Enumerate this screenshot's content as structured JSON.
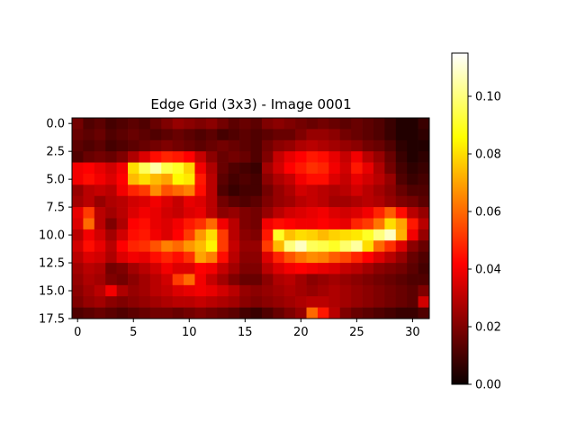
{
  "chart_data": {
    "type": "heatmap",
    "title": "Edge Grid (3x3) - Image 0001",
    "xlabel": "",
    "ylabel": "",
    "colormap": "hot",
    "xlim": [
      -0.5,
      31.5
    ],
    "ylim": [
      17.5,
      -0.5
    ],
    "x_ticks": [
      0,
      5,
      10,
      15,
      20,
      25,
      30
    ],
    "x_tick_labels": [
      "0",
      "5",
      "10",
      "15",
      "20",
      "25",
      "30"
    ],
    "y_ticks": [
      0,
      2.5,
      5,
      7.5,
      10,
      12.5,
      15,
      17.5
    ],
    "y_tick_labels": [
      "0.0",
      "2.5",
      "5.0",
      "7.5",
      "10.0",
      "12.5",
      "15.0",
      "17.5"
    ],
    "colorbar": {
      "range": [
        0,
        0.115
      ],
      "ticks": [
        0,
        0.02,
        0.04,
        0.06,
        0.08,
        0.1
      ],
      "tick_labels": [
        "0.00",
        "0.02",
        "0.04",
        "0.06",
        "0.08",
        "0.10"
      ]
    },
    "rows": 18,
    "cols": 32,
    "values": [
      [
        0.018,
        0.012,
        0.014,
        0.01,
        0.012,
        0.014,
        0.012,
        0.016,
        0.02,
        0.024,
        0.022,
        0.02,
        0.022,
        0.018,
        0.014,
        0.016,
        0.014,
        0.02,
        0.022,
        0.02,
        0.018,
        0.016,
        0.018,
        0.016,
        0.014,
        0.016,
        0.014,
        0.012,
        0.008,
        0.004,
        0.004,
        0.008
      ],
      [
        0.016,
        0.014,
        0.016,
        0.012,
        0.014,
        0.016,
        0.014,
        0.012,
        0.014,
        0.016,
        0.014,
        0.012,
        0.014,
        0.01,
        0.012,
        0.014,
        0.012,
        0.014,
        0.016,
        0.016,
        0.02,
        0.024,
        0.024,
        0.022,
        0.018,
        0.016,
        0.014,
        0.012,
        0.008,
        0.004,
        0.004,
        0.006
      ],
      [
        0.014,
        0.012,
        0.014,
        0.01,
        0.012,
        0.014,
        0.016,
        0.018,
        0.02,
        0.018,
        0.016,
        0.014,
        0.016,
        0.018,
        0.016,
        0.014,
        0.012,
        0.018,
        0.022,
        0.024,
        0.028,
        0.03,
        0.028,
        0.026,
        0.024,
        0.022,
        0.018,
        0.016,
        0.012,
        0.006,
        0.004,
        0.004
      ],
      [
        0.012,
        0.016,
        0.018,
        0.016,
        0.02,
        0.028,
        0.036,
        0.044,
        0.048,
        0.046,
        0.042,
        0.032,
        0.022,
        0.016,
        0.018,
        0.016,
        0.012,
        0.02,
        0.032,
        0.038,
        0.042,
        0.046,
        0.044,
        0.038,
        0.032,
        0.04,
        0.03,
        0.024,
        0.016,
        0.008,
        0.004,
        0.006
      ],
      [
        0.04,
        0.042,
        0.038,
        0.034,
        0.04,
        0.08,
        0.096,
        0.105,
        0.094,
        0.09,
        0.078,
        0.04,
        0.028,
        0.016,
        0.012,
        0.01,
        0.008,
        0.026,
        0.034,
        0.042,
        0.046,
        0.05,
        0.048,
        0.04,
        0.034,
        0.046,
        0.038,
        0.028,
        0.018,
        0.01,
        0.006,
        0.008
      ],
      [
        0.04,
        0.044,
        0.04,
        0.036,
        0.042,
        0.074,
        0.08,
        0.074,
        0.07,
        0.085,
        0.082,
        0.046,
        0.03,
        0.014,
        0.01,
        0.012,
        0.01,
        0.022,
        0.028,
        0.032,
        0.04,
        0.044,
        0.044,
        0.036,
        0.032,
        0.038,
        0.034,
        0.03,
        0.024,
        0.012,
        0.008,
        0.01
      ],
      [
        0.024,
        0.03,
        0.032,
        0.03,
        0.04,
        0.048,
        0.052,
        0.066,
        0.056,
        0.06,
        0.064,
        0.044,
        0.03,
        0.012,
        0.008,
        0.01,
        0.01,
        0.018,
        0.024,
        0.028,
        0.034,
        0.032,
        0.03,
        0.028,
        0.03,
        0.034,
        0.03,
        0.026,
        0.022,
        0.016,
        0.012,
        0.012
      ],
      [
        0.026,
        0.03,
        0.024,
        0.028,
        0.03,
        0.034,
        0.036,
        0.04,
        0.036,
        0.032,
        0.038,
        0.036,
        0.03,
        0.018,
        0.014,
        0.012,
        0.014,
        0.02,
        0.024,
        0.026,
        0.03,
        0.032,
        0.03,
        0.026,
        0.026,
        0.028,
        0.03,
        0.028,
        0.024,
        0.02,
        0.018,
        0.014
      ],
      [
        0.038,
        0.052,
        0.03,
        0.026,
        0.03,
        0.036,
        0.04,
        0.038,
        0.034,
        0.032,
        0.036,
        0.038,
        0.03,
        0.022,
        0.024,
        0.02,
        0.018,
        0.024,
        0.03,
        0.034,
        0.036,
        0.038,
        0.04,
        0.036,
        0.034,
        0.036,
        0.04,
        0.048,
        0.058,
        0.044,
        0.03,
        0.024
      ],
      [
        0.036,
        0.06,
        0.03,
        0.02,
        0.028,
        0.042,
        0.044,
        0.038,
        0.036,
        0.04,
        0.046,
        0.05,
        0.06,
        0.04,
        0.03,
        0.02,
        0.018,
        0.04,
        0.044,
        0.042,
        0.04,
        0.04,
        0.042,
        0.04,
        0.038,
        0.048,
        0.052,
        0.062,
        0.08,
        0.07,
        0.046,
        0.03
      ],
      [
        0.03,
        0.04,
        0.034,
        0.026,
        0.034,
        0.044,
        0.046,
        0.04,
        0.036,
        0.042,
        0.052,
        0.068,
        0.08,
        0.052,
        0.03,
        0.022,
        0.02,
        0.046,
        0.09,
        0.075,
        0.08,
        0.078,
        0.074,
        0.078,
        0.08,
        0.082,
        0.09,
        0.1,
        0.108,
        0.072,
        0.04,
        0.024
      ],
      [
        0.034,
        0.044,
        0.038,
        0.03,
        0.042,
        0.048,
        0.05,
        0.056,
        0.064,
        0.06,
        0.068,
        0.074,
        0.084,
        0.052,
        0.032,
        0.024,
        0.024,
        0.052,
        0.074,
        0.1,
        0.108,
        0.096,
        0.094,
        0.09,
        0.098,
        0.104,
        0.08,
        0.06,
        0.05,
        0.036,
        0.022,
        0.016
      ],
      [
        0.03,
        0.036,
        0.034,
        0.028,
        0.036,
        0.04,
        0.038,
        0.044,
        0.048,
        0.044,
        0.05,
        0.07,
        0.064,
        0.044,
        0.03,
        0.022,
        0.022,
        0.036,
        0.048,
        0.056,
        0.062,
        0.066,
        0.064,
        0.058,
        0.054,
        0.048,
        0.042,
        0.036,
        0.03,
        0.024,
        0.016,
        0.012
      ],
      [
        0.026,
        0.03,
        0.028,
        0.018,
        0.02,
        0.026,
        0.03,
        0.034,
        0.04,
        0.036,
        0.036,
        0.042,
        0.04,
        0.032,
        0.026,
        0.02,
        0.02,
        0.03,
        0.036,
        0.04,
        0.042,
        0.04,
        0.038,
        0.036,
        0.032,
        0.03,
        0.026,
        0.022,
        0.02,
        0.018,
        0.014,
        0.01
      ],
      [
        0.024,
        0.028,
        0.026,
        0.02,
        0.018,
        0.022,
        0.026,
        0.03,
        0.034,
        0.052,
        0.06,
        0.04,
        0.032,
        0.026,
        0.02,
        0.016,
        0.016,
        0.022,
        0.028,
        0.03,
        0.026,
        0.022,
        0.024,
        0.026,
        0.024,
        0.022,
        0.02,
        0.018,
        0.016,
        0.014,
        0.012,
        0.012
      ],
      [
        0.022,
        0.026,
        0.03,
        0.04,
        0.028,
        0.024,
        0.026,
        0.03,
        0.032,
        0.036,
        0.038,
        0.04,
        0.038,
        0.034,
        0.03,
        0.024,
        0.022,
        0.024,
        0.026,
        0.028,
        0.026,
        0.024,
        0.026,
        0.028,
        0.026,
        0.024,
        0.022,
        0.02,
        0.018,
        0.016,
        0.014,
        0.02
      ],
      [
        0.02,
        0.024,
        0.026,
        0.022,
        0.02,
        0.022,
        0.024,
        0.026,
        0.028,
        0.03,
        0.03,
        0.032,
        0.03,
        0.028,
        0.026,
        0.022,
        0.02,
        0.022,
        0.024,
        0.026,
        0.028,
        0.03,
        0.03,
        0.028,
        0.026,
        0.024,
        0.022,
        0.02,
        0.018,
        0.016,
        0.014,
        0.034
      ],
      [
        0.012,
        0.014,
        0.016,
        0.014,
        0.012,
        0.014,
        0.016,
        0.018,
        0.018,
        0.016,
        0.018,
        0.02,
        0.018,
        0.016,
        0.014,
        0.01,
        0.008,
        0.012,
        0.016,
        0.02,
        0.024,
        0.06,
        0.046,
        0.03,
        0.02,
        0.016,
        0.014,
        0.012,
        0.01,
        0.008,
        0.008,
        0.012
      ]
    ]
  }
}
